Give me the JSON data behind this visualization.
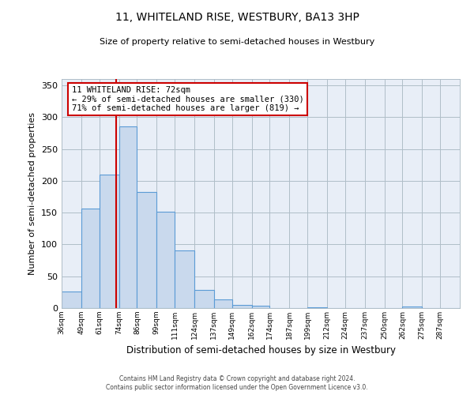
{
  "title": "11, WHITELAND RISE, WESTBURY, BA13 3HP",
  "subtitle": "Size of property relative to semi-detached houses in Westbury",
  "xlabel": "Distribution of semi-detached houses by size in Westbury",
  "ylabel": "Number of semi-detached properties",
  "bin_labels": [
    "36sqm",
    "49sqm",
    "61sqm",
    "74sqm",
    "86sqm",
    "99sqm",
    "111sqm",
    "124sqm",
    "137sqm",
    "149sqm",
    "162sqm",
    "174sqm",
    "187sqm",
    "199sqm",
    "212sqm",
    "224sqm",
    "237sqm",
    "250sqm",
    "262sqm",
    "275sqm",
    "287sqm"
  ],
  "bar_values": [
    26,
    156,
    210,
    285,
    183,
    152,
    91,
    28,
    14,
    5,
    4,
    0,
    0,
    1,
    0,
    0,
    0,
    0,
    2,
    0,
    0
  ],
  "bar_color": "#c9d9ed",
  "bar_edge_color": "#5b9bd5",
  "vline_x": 72,
  "vline_color": "#cc0000",
  "annotation_title": "11 WHITELAND RISE: 72sqm",
  "annotation_line1": "← 29% of semi-detached houses are smaller (330)",
  "annotation_line2": "71% of semi-detached houses are larger (819) →",
  "annotation_box_color": "#ffffff",
  "annotation_box_edge": "#cc0000",
  "ylim": [
    0,
    360
  ],
  "yticks": [
    0,
    50,
    100,
    150,
    200,
    250,
    300,
    350
  ],
  "footnote1": "Contains HM Land Registry data © Crown copyright and database right 2024.",
  "footnote2": "Contains public sector information licensed under the Open Government Licence v3.0.",
  "bin_edges": [
    36,
    49,
    61,
    74,
    86,
    99,
    111,
    124,
    137,
    149,
    162,
    174,
    187,
    199,
    212,
    224,
    237,
    250,
    262,
    275,
    287,
    300
  ],
  "bg_color": "#e8eef7"
}
